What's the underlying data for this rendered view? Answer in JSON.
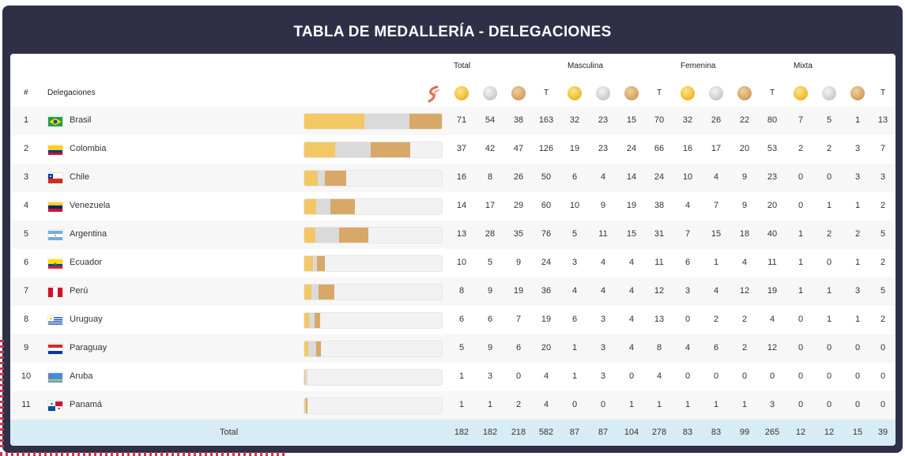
{
  "title": "TABLA DE MEDALLERÍA - DELEGACIONES",
  "header": {
    "rank": "#",
    "delegation": "Delegaciones",
    "groups": [
      "Total",
      "Masculina",
      "Femenina",
      "Mixta"
    ],
    "total_col": "T"
  },
  "colors": {
    "gold": "#f3c864",
    "silver": "#dadada",
    "bronze": "#d7a867",
    "panel": "#2f3048",
    "total_row": "#d8ecf6"
  },
  "rows": [
    {
      "rank": "1",
      "name": "Brasil",
      "flag": "brazil",
      "vals": [
        "71",
        "54",
        "38",
        "163",
        "32",
        "23",
        "15",
        "70",
        "32",
        "26",
        "22",
        "80",
        "7",
        "5",
        "1",
        "13"
      ]
    },
    {
      "rank": "2",
      "name": "Colombia",
      "flag": "colombia",
      "vals": [
        "37",
        "42",
        "47",
        "126",
        "19",
        "23",
        "24",
        "66",
        "16",
        "17",
        "20",
        "53",
        "2",
        "2",
        "3",
        "7"
      ]
    },
    {
      "rank": "3",
      "name": "Chile",
      "flag": "chile",
      "vals": [
        "16",
        "8",
        "26",
        "50",
        "6",
        "4",
        "14",
        "24",
        "10",
        "4",
        "9",
        "23",
        "0",
        "0",
        "3",
        "3"
      ]
    },
    {
      "rank": "4",
      "name": "Venezuela",
      "flag": "venezuela",
      "vals": [
        "14",
        "17",
        "29",
        "60",
        "10",
        "9",
        "19",
        "38",
        "4",
        "7",
        "9",
        "20",
        "0",
        "1",
        "1",
        "2"
      ]
    },
    {
      "rank": "5",
      "name": "Argentina",
      "flag": "argentina",
      "vals": [
        "13",
        "28",
        "35",
        "76",
        "5",
        "11",
        "15",
        "31",
        "7",
        "15",
        "18",
        "40",
        "1",
        "2",
        "2",
        "5"
      ]
    },
    {
      "rank": "6",
      "name": "Ecuador",
      "flag": "ecuador",
      "vals": [
        "10",
        "5",
        "9",
        "24",
        "3",
        "4",
        "4",
        "11",
        "6",
        "1",
        "4",
        "11",
        "1",
        "0",
        "1",
        "2"
      ]
    },
    {
      "rank": "7",
      "name": "Perú",
      "flag": "peru",
      "vals": [
        "8",
        "9",
        "19",
        "36",
        "4",
        "4",
        "4",
        "12",
        "3",
        "4",
        "12",
        "19",
        "1",
        "1",
        "3",
        "5"
      ]
    },
    {
      "rank": "8",
      "name": "Uruguay",
      "flag": "uruguay",
      "vals": [
        "6",
        "6",
        "7",
        "19",
        "6",
        "3",
        "4",
        "13",
        "0",
        "2",
        "2",
        "4",
        "0",
        "1",
        "1",
        "2"
      ]
    },
    {
      "rank": "9",
      "name": "Paraguay",
      "flag": "paraguay",
      "vals": [
        "5",
        "9",
        "6",
        "20",
        "1",
        "3",
        "4",
        "8",
        "4",
        "6",
        "2",
        "12",
        "0",
        "0",
        "0",
        "0"
      ]
    },
    {
      "rank": "10",
      "name": "Aruba",
      "flag": "aruba",
      "vals": [
        "1",
        "3",
        "0",
        "4",
        "1",
        "3",
        "0",
        "4",
        "0",
        "0",
        "0",
        "0",
        "0",
        "0",
        "0",
        "0"
      ]
    },
    {
      "rank": "11",
      "name": "Panamá",
      "flag": "panama",
      "vals": [
        "1",
        "1",
        "2",
        "4",
        "0",
        "0",
        "1",
        "1",
        "1",
        "1",
        "1",
        "3",
        "0",
        "0",
        "0",
        "0"
      ]
    }
  ],
  "totals": {
    "label": "Total",
    "vals": [
      "182",
      "182",
      "218",
      "582",
      "87",
      "87",
      "104",
      "278",
      "83",
      "83",
      "99",
      "265",
      "12",
      "12",
      "15",
      "39"
    ]
  }
}
